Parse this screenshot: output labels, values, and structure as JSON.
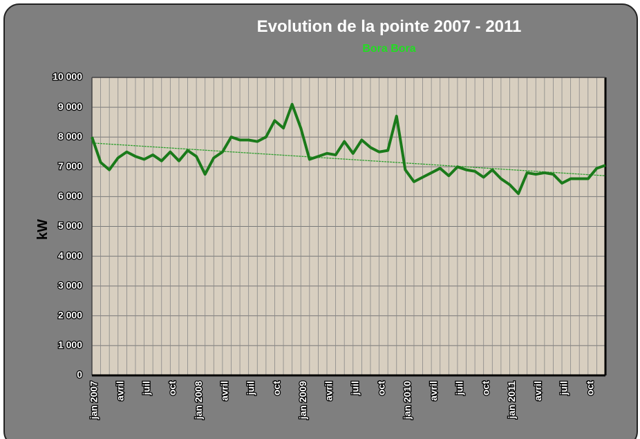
{
  "chart_data": {
    "type": "line",
    "title": "Evolution de la pointe 2007 - 2011",
    "subtitle": "Bora Bora",
    "y_label": "kW",
    "categories": [
      "jan 2007",
      null,
      null,
      "avril",
      null,
      null,
      "juil",
      null,
      null,
      "oct",
      null,
      null,
      "jan 2008",
      null,
      null,
      "avril",
      null,
      null,
      "juil",
      null,
      null,
      "oct",
      null,
      null,
      "jan 2009",
      null,
      null,
      "avril",
      null,
      null,
      "juil",
      null,
      null,
      "oct",
      null,
      null,
      "jan 2010",
      null,
      null,
      "avril",
      null,
      null,
      "juil",
      null,
      null,
      "oct",
      null,
      null,
      "jan 2011",
      null,
      null,
      "avril",
      null,
      null,
      "juil",
      null,
      null,
      "oct",
      null,
      null
    ],
    "series": [
      {
        "color": "#1a7a1a",
        "values": [
          8000,
          7150,
          6900,
          7300,
          7500,
          7350,
          7250,
          7400,
          7200,
          7500,
          7200,
          7550,
          7350,
          6750,
          7300,
          7500,
          8000,
          7900,
          7900,
          7850,
          8000,
          8550,
          8300,
          9100,
          8300,
          7250,
          7350,
          7450,
          7400,
          7850,
          7450,
          7900,
          7650,
          7500,
          7550,
          8700,
          6900,
          6500,
          6650,
          6800,
          6950,
          6700,
          7000,
          6900,
          6850,
          6650,
          6900,
          6600,
          6400,
          6100,
          6800,
          6750,
          6800,
          6750,
          6450,
          6600,
          6600,
          6600,
          6950,
          7050
        ]
      }
    ],
    "trendline": {
      "start": 7800,
      "end": 6700,
      "color": "#2e9e2e"
    },
    "ylim": [
      0,
      10000
    ],
    "yticks": [
      0,
      {
        "value": 1000,
        "label": "1 000"
      },
      {
        "value": 2000,
        "label": "2 000"
      },
      {
        "value": 3000,
        "label": "3 000"
      },
      {
        "value": 4000,
        "label": "4 000"
      },
      {
        "value": 5000,
        "label": "5 000"
      },
      {
        "value": 6000,
        "label": "6 000"
      },
      {
        "value": 7000,
        "label": "7 000"
      },
      {
        "value": 8000,
        "label": "8 000"
      },
      {
        "value": 9000,
        "label": "9 000"
      },
      {
        "value": 10000,
        "label": "10 000"
      }
    ],
    "grid": true
  }
}
